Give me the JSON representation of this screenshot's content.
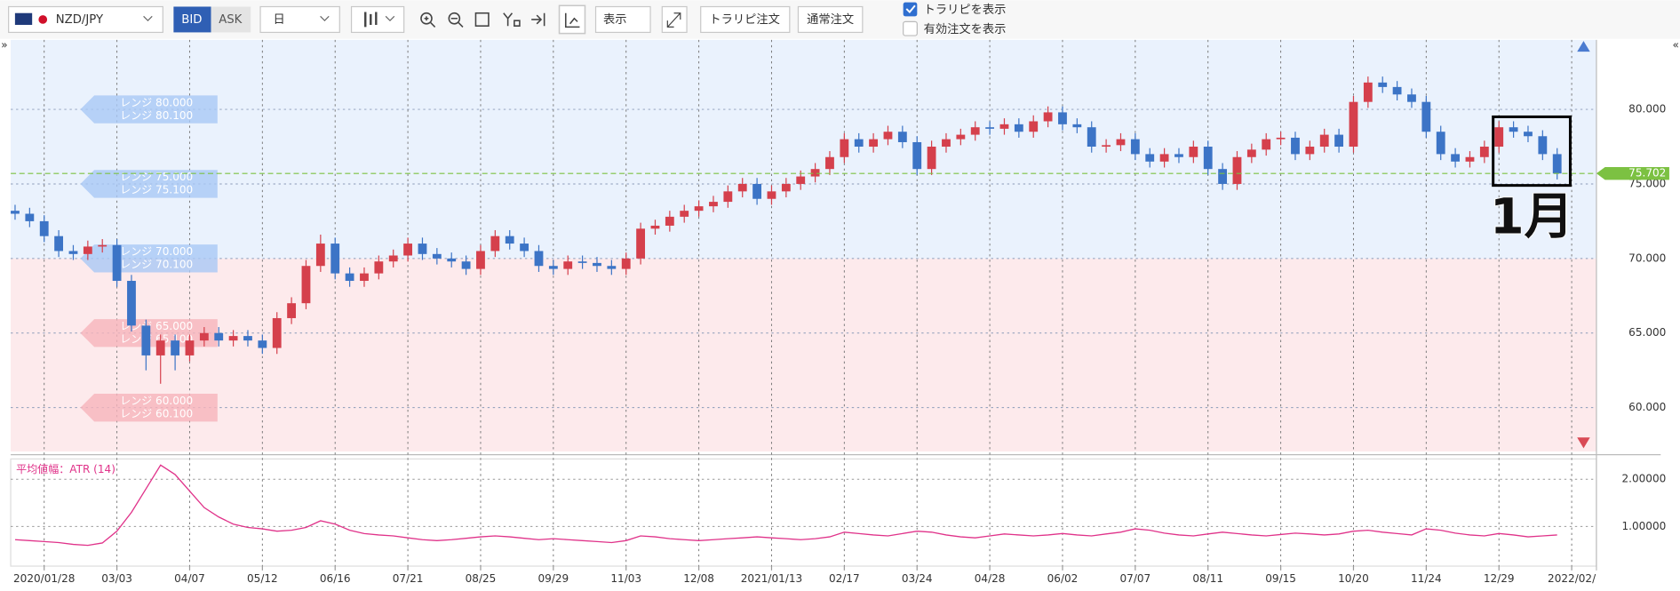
{
  "toolbar": {
    "symbol": "NZD/JPY",
    "bid": "BID",
    "ask": "ASK",
    "period": "日",
    "view": "表示",
    "trap_order": "トラリピ注文",
    "normal_order": "通常注文",
    "show_trap": "トラリピを表示",
    "show_orders": "有効注文を表示"
  },
  "chart_data": {
    "type": "candlestick",
    "up_color": "#d5404c",
    "down_color": "#3c74c6",
    "xlim": [
      -0.3,
      108.7
    ],
    "xticks": [
      {
        "value": 2,
        "label": "2020/01/28"
      },
      {
        "value": 7,
        "label": "03/03"
      },
      {
        "value": 12,
        "label": "04/07"
      },
      {
        "value": 17,
        "label": "05/12"
      },
      {
        "value": 22,
        "label": "06/16"
      },
      {
        "value": 27,
        "label": "07/21"
      },
      {
        "value": 32,
        "label": "08/25"
      },
      {
        "value": 37,
        "label": "09/29"
      },
      {
        "value": 42,
        "label": "11/03"
      },
      {
        "value": 47,
        "label": "12/08"
      },
      {
        "value": 52,
        "label": "2021/01/13"
      },
      {
        "value": 57,
        "label": "02/17"
      },
      {
        "value": 62,
        "label": "03/24"
      },
      {
        "value": 67,
        "label": "04/28"
      },
      {
        "value": 72,
        "label": "06/02"
      },
      {
        "value": 77,
        "label": "07/07"
      },
      {
        "value": 82,
        "label": "08/11"
      },
      {
        "value": 87,
        "label": "09/15"
      },
      {
        "value": 92,
        "label": "10/20"
      },
      {
        "value": 97,
        "label": "11/24"
      },
      {
        "value": 102,
        "label": "12/29"
      },
      {
        "value": 107,
        "label": "2022/02/"
      }
    ],
    "ylim": [
      57.06,
      84.66
    ],
    "yticks": [
      {
        "value": 60,
        "label": "60.000"
      },
      {
        "value": 65,
        "label": "65.000"
      },
      {
        "value": 70,
        "label": "70.000"
      },
      {
        "value": 75,
        "label": "75.000"
      },
      {
        "value": 80,
        "label": "80.000"
      }
    ],
    "open": [
      73.2,
      73.0,
      72.5,
      71.5,
      70.5,
      70.3,
      70.8,
      70.9,
      68.5,
      65.5,
      63.5,
      64.5,
      63.5,
      64.5,
      65.0,
      64.5,
      64.8,
      64.5,
      64.0,
      66.0,
      67.0,
      69.5,
      71.0,
      69.0,
      68.5,
      69.0,
      69.8,
      70.2,
      71.0,
      70.3,
      70.0,
      69.8,
      69.3,
      70.5,
      71.5,
      71.0,
      70.5,
      69.5,
      69.3,
      69.8,
      69.7,
      69.5,
      69.3,
      70.0,
      72.0,
      72.2,
      72.8,
      73.2,
      73.5,
      73.8,
      74.5,
      75.0,
      74.0,
      74.5,
      75.0,
      75.5,
      76.0,
      76.8,
      78.0,
      77.5,
      78.0,
      78.5,
      77.8,
      76.0,
      77.5,
      78.0,
      78.3,
      78.8,
      78.7,
      79.0,
      78.5,
      79.2,
      79.8,
      79.0,
      78.8,
      77.5,
      77.6,
      78.0,
      77.0,
      76.5,
      77.0,
      76.8,
      77.5,
      76.0,
      75.0,
      76.8,
      77.3,
      78.0,
      78.1,
      77.0,
      77.5,
      78.3,
      77.5,
      80.5,
      81.8,
      81.5,
      81.0,
      80.5,
      78.5,
      77.0,
      76.5,
      76.8,
      77.5,
      78.8,
      78.5,
      78.2,
      77.0
    ],
    "high": [
      73.6,
      73.4,
      72.9,
      71.9,
      70.9,
      71.2,
      71.3,
      71.3,
      68.9,
      65.9,
      64.9,
      64.9,
      64.9,
      65.4,
      65.4,
      65.2,
      65.2,
      64.9,
      66.4,
      67.4,
      69.9,
      71.6,
      71.4,
      69.4,
      69.4,
      70.2,
      70.6,
      71.4,
      71.4,
      70.7,
      70.4,
      70.2,
      70.9,
      71.9,
      71.9,
      71.4,
      70.9,
      69.9,
      70.2,
      70.2,
      70.1,
      69.9,
      70.4,
      72.4,
      72.6,
      73.2,
      73.6,
      73.9,
      74.2,
      74.9,
      75.4,
      75.4,
      74.9,
      75.4,
      75.9,
      76.4,
      77.2,
      78.4,
      78.4,
      78.4,
      78.9,
      78.9,
      78.2,
      77.9,
      78.4,
      78.7,
      79.2,
      79.2,
      79.4,
      79.4,
      79.6,
      80.2,
      80.2,
      79.4,
      79.2,
      78.0,
      78.4,
      78.4,
      77.4,
      77.4,
      77.4,
      77.9,
      77.9,
      76.4,
      77.2,
      77.7,
      78.4,
      78.5,
      78.5,
      77.9,
      78.7,
      78.7,
      80.9,
      82.2,
      82.2,
      81.9,
      81.4,
      80.9,
      78.9,
      77.4,
      77.2,
      77.9,
      79.2,
      79.2,
      78.9,
      78.6,
      77.4
    ],
    "low": [
      72.6,
      72.1,
      71.1,
      70.1,
      69.9,
      69.9,
      70.4,
      68.1,
      65.1,
      62.5,
      61.6,
      62.5,
      63.1,
      64.1,
      64.1,
      64.1,
      64.1,
      63.6,
      63.6,
      65.6,
      66.6,
      69.1,
      68.6,
      68.1,
      68.1,
      68.6,
      69.4,
      69.8,
      69.9,
      69.6,
      69.4,
      68.9,
      68.9,
      70.1,
      70.6,
      70.1,
      69.1,
      68.9,
      68.9,
      69.3,
      69.1,
      68.9,
      68.9,
      69.6,
      71.6,
      71.8,
      72.4,
      72.8,
      73.1,
      73.4,
      74.1,
      73.6,
      73.6,
      74.1,
      74.6,
      75.1,
      75.6,
      76.4,
      77.1,
      77.1,
      77.6,
      77.4,
      75.6,
      75.6,
      77.1,
      77.6,
      77.9,
      78.3,
      78.3,
      78.1,
      78.1,
      78.8,
      78.6,
      78.4,
      77.1,
      77.1,
      77.2,
      76.6,
      76.1,
      76.1,
      76.4,
      76.4,
      75.6,
      74.6,
      74.6,
      76.4,
      76.9,
      77.6,
      76.6,
      76.6,
      77.1,
      77.1,
      77.1,
      80.1,
      81.1,
      80.6,
      80.1,
      78.1,
      76.6,
      76.1,
      76.1,
      76.4,
      77.1,
      78.1,
      77.8,
      76.6,
      75.3
    ],
    "close": [
      73.0,
      72.5,
      71.5,
      70.5,
      70.3,
      70.8,
      70.9,
      68.5,
      65.5,
      63.5,
      64.5,
      63.5,
      64.5,
      65.0,
      64.5,
      64.8,
      64.5,
      64.0,
      66.0,
      67.0,
      69.5,
      71.0,
      69.0,
      68.5,
      69.0,
      69.8,
      70.2,
      71.0,
      70.3,
      70.0,
      69.8,
      69.3,
      70.5,
      71.5,
      71.0,
      70.5,
      69.5,
      69.3,
      69.8,
      69.7,
      69.5,
      69.3,
      70.0,
      72.0,
      72.2,
      72.8,
      73.2,
      73.5,
      73.8,
      74.5,
      75.0,
      74.0,
      74.5,
      75.0,
      75.5,
      76.0,
      76.8,
      78.0,
      77.5,
      78.0,
      78.5,
      77.8,
      76.0,
      77.5,
      78.0,
      78.3,
      78.8,
      78.7,
      79.0,
      78.5,
      79.2,
      79.8,
      79.0,
      78.8,
      77.5,
      77.6,
      78.0,
      77.0,
      76.5,
      77.0,
      76.8,
      77.5,
      76.0,
      75.0,
      76.8,
      77.3,
      78.0,
      78.1,
      77.0,
      77.5,
      78.3,
      77.5,
      80.5,
      81.8,
      81.5,
      81.0,
      80.5,
      78.5,
      77.0,
      76.5,
      76.8,
      77.5,
      78.8,
      78.5,
      78.2,
      77.0,
      75.7
    ],
    "last_price": 75.702,
    "last_price_color": "#7cc142",
    "zone_split": 70,
    "zone_colors": [
      "#eaf2fd",
      "#fdeaec"
    ],
    "range_tags": [
      {
        "value": 80,
        "labels": [
          "レンジ 80.000",
          "レンジ 80.100"
        ]
      },
      {
        "value": 75,
        "labels": [
          "レンジ 75.000",
          "レンジ 75.100"
        ]
      },
      {
        "value": 70,
        "labels": [
          "レンジ 70.000",
          "レンジ 70.100"
        ]
      },
      {
        "value": 65,
        "labels": [
          "レンジ 65.000",
          "レンジ 65.100"
        ]
      },
      {
        "value": 60,
        "labels": [
          "レンジ 60.000",
          "レンジ 60.100"
        ]
      }
    ],
    "annotation": {
      "text": "1月",
      "x0": 101.6,
      "x1": 106.9,
      "y0": 74.9,
      "y1": 79.5
    },
    "atr": {
      "title": "平均値幅：ATR (14)",
      "color": "#e0338a",
      "ylim": [
        0.16,
        2.43
      ],
      "yticks": [
        {
          "value": 1,
          "label": "1.00000"
        },
        {
          "value": 2,
          "label": "2.00000"
        }
      ],
      "values": [
        0.72,
        0.7,
        0.68,
        0.66,
        0.62,
        0.6,
        0.65,
        0.9,
        1.3,
        1.8,
        2.3,
        2.1,
        1.75,
        1.4,
        1.2,
        1.05,
        0.98,
        0.95,
        0.9,
        0.92,
        0.98,
        1.12,
        1.05,
        0.92,
        0.85,
        0.82,
        0.8,
        0.76,
        0.72,
        0.7,
        0.72,
        0.75,
        0.78,
        0.8,
        0.78,
        0.75,
        0.72,
        0.74,
        0.72,
        0.7,
        0.68,
        0.66,
        0.7,
        0.8,
        0.78,
        0.74,
        0.72,
        0.7,
        0.72,
        0.74,
        0.76,
        0.78,
        0.76,
        0.74,
        0.72,
        0.74,
        0.78,
        0.88,
        0.85,
        0.82,
        0.8,
        0.85,
        0.9,
        0.88,
        0.82,
        0.78,
        0.76,
        0.8,
        0.84,
        0.82,
        0.8,
        0.82,
        0.85,
        0.82,
        0.8,
        0.84,
        0.88,
        0.95,
        0.92,
        0.86,
        0.82,
        0.8,
        0.84,
        0.88,
        0.85,
        0.82,
        0.8,
        0.83,
        0.86,
        0.84,
        0.82,
        0.84,
        0.9,
        0.92,
        0.88,
        0.85,
        0.82,
        0.95,
        0.92,
        0.86,
        0.82,
        0.8,
        0.85,
        0.82,
        0.78,
        0.8,
        0.82
      ]
    }
  }
}
